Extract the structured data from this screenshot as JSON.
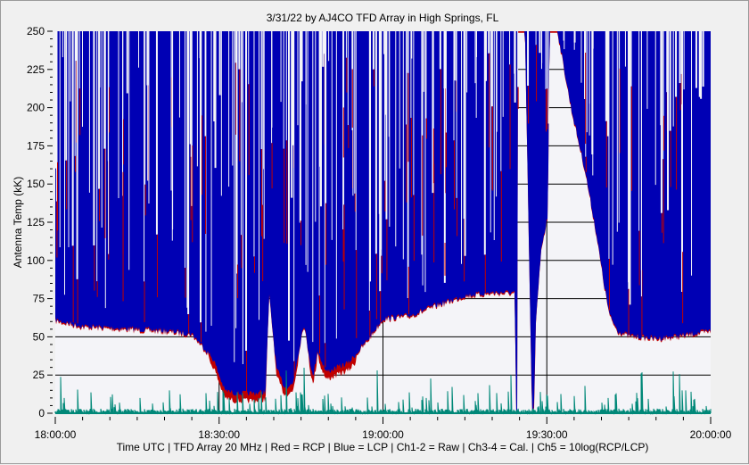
{
  "chart_data": {
    "type": "line",
    "title": "3/31/22  by  AJ4CO TFD Array  in  High Springs, FL",
    "xlabel": "Time UTC | TFD Array 20 MHz | Red = RCP | Blue = LCP | Ch1-2 = Raw | Ch3-4 = Cal. | Ch5 = 10log(RCP/LCP)",
    "ylabel": "Antenna Temp (kK)",
    "xlim": [
      "18:00:00",
      "20:00:00"
    ],
    "ylim": [
      0,
      250
    ],
    "x_ticks": [
      "18:00:00",
      "18:30:00",
      "19:00:00",
      "19:30:00",
      "20:00:00"
    ],
    "y_ticks": [
      0,
      25,
      50,
      75,
      100,
      125,
      150,
      175,
      200,
      225,
      250
    ],
    "grid": true,
    "colors": {
      "rcp": "#c00000",
      "lcp": "#0000b4",
      "ch5": "#008878",
      "plot_bg": "#f4f4f8"
    },
    "series": [
      {
        "name": "LCP",
        "note_color": "blue",
        "lower_envelope_time": [
          "18:00:00",
          "18:05:00",
          "18:10:00",
          "18:15:00",
          "18:20:00",
          "18:25:00",
          "18:27:00",
          "18:29:00",
          "18:31:00",
          "18:33:00",
          "18:36:00",
          "18:38:30",
          "18:39:10",
          "18:40:30",
          "18:42:00",
          "18:43:30",
          "18:45:30",
          "18:47:10",
          "18:48:00",
          "18:49:36",
          "18:53:42",
          "18:57:00",
          "18:59:24",
          "19:00:00",
          "19:05:00",
          "19:10:00",
          "19:15:00",
          "19:20:00",
          "19:24:12",
          "19:24:18",
          "19:24:36",
          "19:24:42",
          "19:26:00",
          "19:27:18",
          "19:27:36",
          "19:28:00",
          "19:29:00",
          "19:30:12",
          "19:30:30",
          "19:32:00",
          "19:34:30",
          "19:37:00",
          "19:39:00",
          "19:40:30",
          "19:41:30",
          "19:43:00",
          "19:45:00",
          "19:50:00",
          "19:55:00",
          "20:00:00"
        ],
        "lower_envelope_kK": [
          62,
          58,
          57,
          56,
          55,
          53,
          45,
          36,
          16,
          14,
          14,
          15,
          78,
          30,
          18,
          20,
          60,
          24,
          42,
          28,
          34,
          48,
          60,
          63,
          65,
          72,
          78,
          80,
          80,
          0,
          0,
          250,
          250,
          0,
          0,
          60,
          110,
          130,
          250,
          250,
          200,
          160,
          120,
          85,
          65,
          55,
          52,
          50,
          52,
          55
        ],
        "upper_kK": 250
      },
      {
        "name": "RCP",
        "note_color": "red",
        "upper_kK": 250
      },
      {
        "name": "Ch5",
        "note_color": "teal",
        "typical_kK": 2,
        "peak_kK": 31
      }
    ]
  }
}
